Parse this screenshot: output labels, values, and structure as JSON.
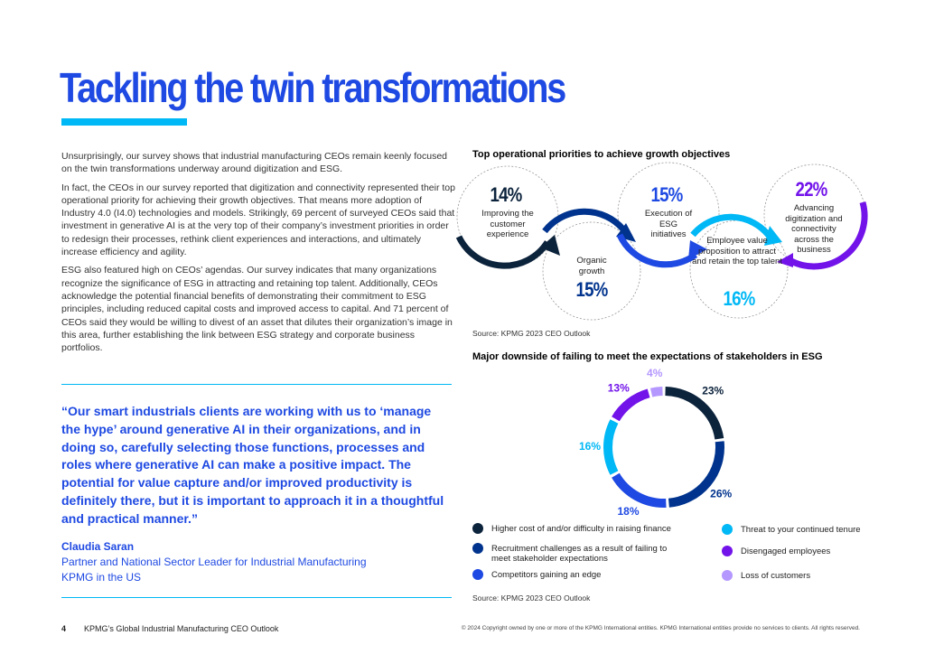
{
  "header": {
    "title": "Tackling the twin transformations"
  },
  "body": {
    "paragraphs": [
      "Unsurprisingly, our survey shows that industrial manufacturing CEOs remain keenly focused on the twin transformations underway around digitization and ESG.",
      "In fact, the CEOs in our survey reported that digitization and connectivity represented their top operational priority for achieving their growth objectives. That means more adoption of Industry 4.0 (I4.0) technologies and models. Strikingly, 69 percent of surveyed CEOs said that investment in generative AI is at the very top of their company’s investment priorities in order to redesign their processes, rethink client experiences and interactions, and ultimately increase efficiency and agility.",
      "ESG also featured high on CEOs’ agendas. Our survey indicates that many organizations recognize the significance of ESG in attracting and retaining top talent. Additionally, CEOs acknowledge the potential financial benefits of demonstrating their commitment to ESG principles, including reduced capital costs and improved access to capital. And 71 percent of CEOs said they would be willing to divest of an asset that dilutes their organization’s image in this area, further establishing the link between ESG strategy and corporate business portfolios."
    ]
  },
  "quote": {
    "text": "“Our smart industrials clients are working with us to ‘manage the hype’ around generative AI in their organizations, and in doing so, carefully selecting those functions, processes and roles where generative AI can make a positive impact. The potential for value capture and/or improved productivity is definitely there, but it is important to approach it in a thoughtful and practical manner.”",
    "author": "Claudia Saran",
    "role": "Partner and National Sector Leader for Industrial Manufacturing",
    "organization": "KPMG in the US"
  },
  "priorities": {
    "title": "Top operational priorities to achieve growth objectives",
    "items": [
      {
        "value": "14%",
        "label": "Improving the customer experience"
      },
      {
        "value": "15%",
        "label": "Organic growth"
      },
      {
        "value": "15%",
        "label": "Execution of ESG initiatives"
      },
      {
        "value": "16%",
        "label": "Employee value proposition to attract and retain the top talent"
      },
      {
        "value": "22%",
        "label": "Advancing digitization and connectivity across the business"
      }
    ],
    "source": "Source: KPMG 2023 CEO Outlook"
  },
  "chart_data": {
    "type": "donut",
    "title": "Major downside of failing to meet the expectations of stakeholders in ESG",
    "categories": [
      "Higher cost of and/or difficulty in raising finance",
      "Recruitment challenges as a result of failing to meet stakeholder expectations",
      "Competitors gaining an edge",
      "Threat to your continued tenure",
      "Disengaged employees",
      "Loss of customers"
    ],
    "values": [
      23,
      26,
      18,
      16,
      13,
      4
    ],
    "value_labels": [
      "23%",
      "26%",
      "18%",
      "16%",
      "13%",
      "4%"
    ],
    "colors": [
      "#0c233c",
      "#00338d",
      "#1e49e2",
      "#00b8f5",
      "#7213ea",
      "#b497ff"
    ],
    "source": "Source: KPMG 2023 CEO Outlook"
  },
  "footer": {
    "page": "4",
    "publication": "KPMG’s Global Industrial Manufacturing CEO Outlook",
    "copyright": "© 2024 Copyright owned by one or more of the KPMG International entities. KPMG International entities provide no services to clients. All rights reserved."
  }
}
